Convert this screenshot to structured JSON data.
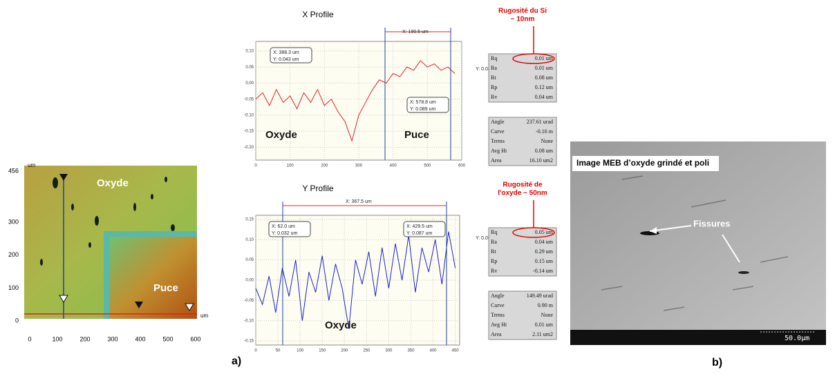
{
  "panel_a": {
    "label": "a)",
    "map": {
      "x_unit": "um",
      "y_unit": "um",
      "xlim": [
        0,
        600
      ],
      "ylim": [
        0,
        456
      ],
      "xticks": [
        0,
        100,
        200,
        300,
        400,
        500,
        600
      ],
      "yticks": [
        0,
        100,
        200,
        300,
        456
      ],
      "region_top": "Oxyde",
      "region_corner": "Puce"
    },
    "x_profile": {
      "type": "line",
      "title": "X Profile",
      "color": "#e02020",
      "grid": true,
      "xlim": [
        0,
        600
      ],
      "ylim": [
        -0.24,
        0.13
      ],
      "xticks": [
        0,
        100,
        200,
        300,
        400,
        500,
        600
      ],
      "yticks": [
        {
          "value": 0.1,
          "label": "0.10"
        },
        0.05,
        {
          "value": 0,
          "label": "0.00"
        },
        -0.05,
        {
          "value": -0.1,
          "label": "-0.10"
        },
        -0.15,
        {
          "value": -0.2,
          "label": "-0.20"
        }
      ],
      "x": [
        0,
        20,
        40,
        60,
        80,
        100,
        120,
        140,
        160,
        180,
        200,
        220,
        240,
        260,
        280,
        300,
        320,
        340,
        360,
        380,
        400,
        420,
        440,
        460,
        480,
        500,
        520,
        540,
        560,
        580
      ],
      "values": [
        -0.05,
        -0.03,
        -0.07,
        -0.02,
        -0.06,
        -0.04,
        -0.08,
        -0.03,
        -0.06,
        -0.02,
        -0.07,
        -0.05,
        -0.09,
        -0.12,
        -0.18,
        -0.1,
        -0.06,
        -0.02,
        0.01,
        0,
        0.03,
        0.02,
        0.05,
        0.04,
        0.07,
        0.05,
        0.06,
        0.04,
        0.05,
        0.03
      ],
      "annotations": [
        "X: 190.5 um",
        "X: 388.3 um",
        "Y: 0.043 um",
        "X: 578.8 um",
        "Y: 0.089 um",
        "Y: 0.045 um",
        "Oxyde",
        "Puce"
      ],
      "note": [
        "Rugosité du Si",
        "~ 10nm"
      ],
      "roughness": [
        [
          "Rq",
          "0.01 um"
        ],
        [
          "Ra",
          "0.01 um"
        ],
        [
          "Rt",
          "0.08 um"
        ],
        [
          "Rp",
          "0.12 um"
        ],
        [
          "Rv",
          "0.04 um"
        ]
      ],
      "params": [
        [
          "Angle",
          "237.61 urad"
        ],
        [
          "Curve",
          "-0.16 m"
        ],
        [
          "Terms",
          "None"
        ],
        [
          "Avg Ht",
          "0.08 um"
        ],
        [
          "Area",
          "16.10 um2"
        ]
      ]
    },
    "y_profile": {
      "type": "line",
      "title": "Y Profile",
      "color": "#2020d0",
      "grid": true,
      "xlim": [
        0,
        460
      ],
      "ylim": [
        -0.16,
        0.16
      ],
      "xticks": [
        0,
        50,
        100,
        150,
        200,
        250,
        300,
        350,
        400,
        450
      ],
      "yticks": [
        0.15,
        {
          "value": 0.1,
          "label": "0.10"
        },
        0.05,
        {
          "value": 0,
          "label": "0.00"
        },
        -0.05,
        {
          "value": -0.1,
          "label": "-0.10"
        },
        -0.15
      ],
      "x": [
        0,
        15,
        30,
        45,
        60,
        75,
        90,
        105,
        120,
        135,
        150,
        165,
        180,
        195,
        210,
        225,
        240,
        255,
        270,
        285,
        300,
        315,
        330,
        345,
        360,
        375,
        390,
        405,
        420,
        435,
        450
      ],
      "values": [
        -0.02,
        -0.06,
        0.01,
        -0.08,
        0.03,
        -0.04,
        0.05,
        -0.1,
        0.02,
        -0.03,
        0.06,
        -0.05,
        0.04,
        -0.02,
        -0.12,
        0.05,
        -0.01,
        0.07,
        -0.04,
        0.08,
        -0.02,
        0.09,
        0,
        0.11,
        -0.03,
        0.08,
        0.02,
        0.1,
        -0.01,
        0.12,
        0.03
      ],
      "annotations": [
        "X: 367.5 um",
        "X: 62.0 um",
        "Y: 0.032 um",
        "X: 429.5 um",
        "Y: 0.087 um",
        "Y: 0.055 um",
        "Oxyde"
      ],
      "note": [
        "Rugosité de",
        "l'oxyde ~ 50nm"
      ],
      "roughness": [
        [
          "Rq",
          "0.05 um"
        ],
        [
          "Ra",
          "0.04 um"
        ],
        [
          "Rt",
          "0.29 um"
        ],
        [
          "Rp",
          "0.15 um"
        ],
        [
          "Rv",
          "-0.14 um"
        ]
      ],
      "params": [
        [
          "Angle",
          "149.49 urad"
        ],
        [
          "Curve",
          "0.90 m"
        ],
        [
          "Terms",
          "None"
        ],
        [
          "Avg Ht",
          "0.01 um"
        ],
        [
          "Area",
          "2.11 um2"
        ]
      ]
    }
  },
  "panel_b": {
    "label": "b)",
    "caption": "Image MEB d’oxyde grindé et poli",
    "arrow_label": "Fissures",
    "scale": "50.0µm"
  }
}
